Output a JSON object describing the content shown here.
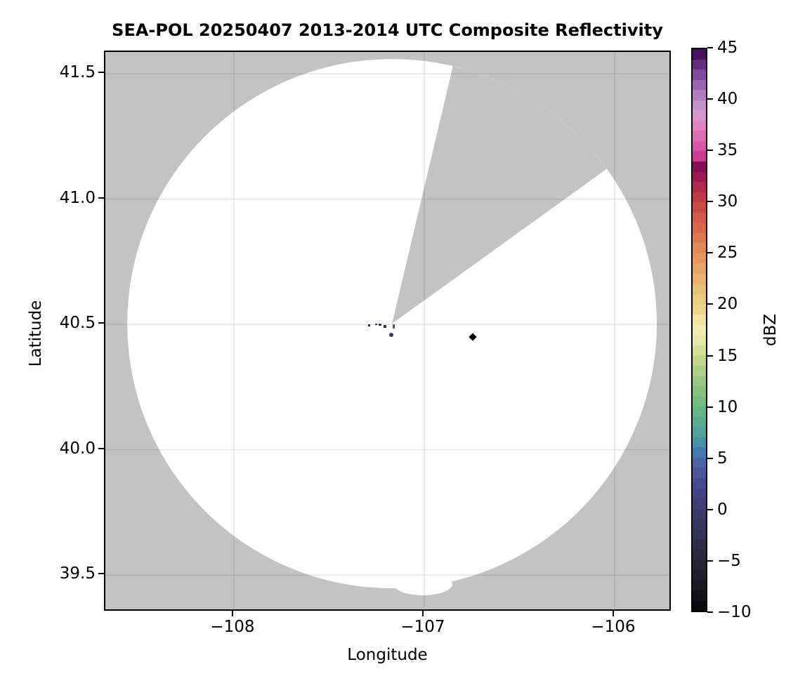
{
  "title": "SEA-POL 20250407 2013-2014 UTC Composite Reflectivity",
  "axes": {
    "xlabel": "Longitude",
    "ylabel": "Latitude",
    "x_tick_labels": [
      "−108",
      "−107",
      "−106"
    ],
    "y_tick_labels": [
      "41.5",
      "41.0",
      "40.5",
      "40.0",
      "39.5"
    ]
  },
  "colorbar": {
    "label": "dBZ",
    "tick_labels": [
      "45",
      "40",
      "35",
      "30",
      "25",
      "20",
      "15",
      "10",
      "5",
      "0",
      "−5",
      "−10"
    ],
    "tick_values": [
      45,
      40,
      35,
      30,
      25,
      20,
      15,
      10,
      5,
      0,
      -5,
      -10
    ],
    "vmin": -10,
    "vmax": 45,
    "band_dbz": 1,
    "stops": [
      [
        -10,
        "#050507"
      ],
      [
        -8,
        "#16161f"
      ],
      [
        -6,
        "#222230"
      ],
      [
        -4,
        "#2b2b43"
      ],
      [
        -2,
        "#343457"
      ],
      [
        0,
        "#3d3d6f"
      ],
      [
        2,
        "#45458a"
      ],
      [
        4,
        "#4b5a9f"
      ],
      [
        5.5,
        "#447bae"
      ],
      [
        7,
        "#4c9da0"
      ],
      [
        9,
        "#5fb18b"
      ],
      [
        11,
        "#7cbd80"
      ],
      [
        13,
        "#a4cc81"
      ],
      [
        15,
        "#cbda90"
      ],
      [
        17,
        "#f0eeb0"
      ],
      [
        18,
        "#f3ecab"
      ],
      [
        19.5,
        "#eed68c"
      ],
      [
        21.5,
        "#e9c078"
      ],
      [
        23.5,
        "#e5a565"
      ],
      [
        25.5,
        "#e08a58"
      ],
      [
        27.5,
        "#d8684c"
      ],
      [
        29.5,
        "#cd4a44"
      ],
      [
        31,
        "#bb3149"
      ],
      [
        32.5,
        "#9c1a50"
      ],
      [
        33.5,
        "#870e55"
      ],
      [
        34.5,
        "#cb3d92"
      ],
      [
        36,
        "#dc64ae"
      ],
      [
        37.5,
        "#e083c2"
      ],
      [
        38.7,
        "#d79ad1"
      ],
      [
        40,
        "#bb89c8"
      ],
      [
        41.5,
        "#9a64b0"
      ],
      [
        43,
        "#753c95"
      ],
      [
        44,
        "#531c68"
      ],
      [
        45,
        "#36094d"
      ]
    ]
  },
  "colors": {
    "no_data_gray": "#c3c3c3",
    "coverage_white": "#ffffff",
    "grid": "rgba(0,0,0,0.10)",
    "spine": "#000000",
    "site_marker": "#000000"
  },
  "chart_data": {
    "type": "heatmap",
    "title": "SEA-POL 20250407 2013-2014 UTC Composite Reflectivity",
    "xlabel": "Longitude",
    "ylabel": "Latitude",
    "xlim": [
      -108.675,
      -105.697
    ],
    "ylim": [
      39.352,
      41.587
    ],
    "x_ticks": [
      -108,
      -107,
      -106
    ],
    "y_ticks": [
      41.5,
      41.0,
      40.5,
      40.0,
      39.5
    ],
    "grid": true,
    "colorbar_label": "dBZ",
    "colorbar_range": [
      -10,
      45
    ],
    "colorbar_tick_step": 5,
    "radar_site": {
      "lon": -107.169,
      "lat": 40.503
    },
    "coverage_radius_lon_deg": 1.391,
    "blocked_sector_azimuth_deg": [
      13.3,
      54.2
    ],
    "echoes": [
      {
        "lon": -107.288,
        "lat": 40.495,
        "dbz": -3,
        "w": 3,
        "h": 3,
        "round": false
      },
      {
        "lon": -107.254,
        "lat": 40.5,
        "dbz": -2,
        "w": 3,
        "h": 2,
        "round": false
      },
      {
        "lon": -107.232,
        "lat": 40.5,
        "dbz": -1,
        "w": 4,
        "h": 3,
        "round": false
      },
      {
        "lon": -107.206,
        "lat": 40.492,
        "dbz": -3,
        "w": 4,
        "h": 4,
        "round": false
      },
      {
        "lon": -107.162,
        "lat": 40.492,
        "dbz": 4,
        "w": 3,
        "h": 6,
        "round": false
      },
      {
        "lon": -107.173,
        "lat": 40.458,
        "dbz": 0,
        "w": 6,
        "h": 6,
        "round": true
      }
    ],
    "site_marker": {
      "lon": -106.745,
      "lat": 40.45,
      "shape": "diamond",
      "size": 8
    }
  }
}
